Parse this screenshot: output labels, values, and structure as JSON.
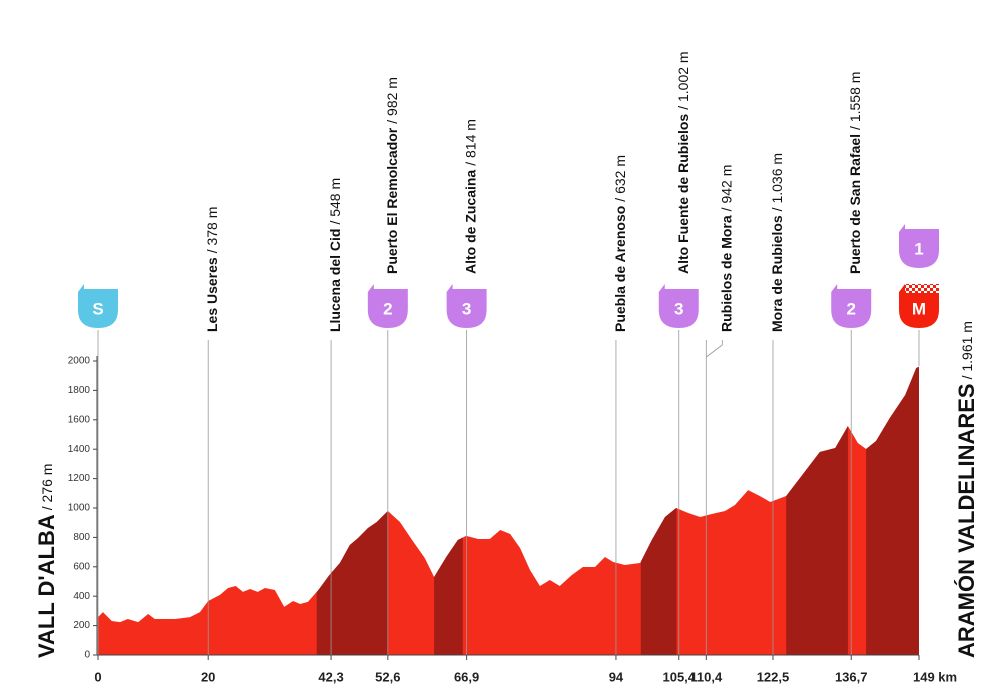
{
  "chart_data": {
    "type": "area",
    "x": [
      0,
      0.9,
      2.5,
      4,
      5.4,
      7.3,
      9.1,
      10.3,
      14,
      16.7,
      18.5,
      20,
      22.1,
      23.6,
      25,
      26.3,
      27.6,
      29,
      30.3,
      32.1,
      33.8,
      35.4,
      36.7,
      38.1,
      40,
      42,
      43.9,
      45.7,
      47.2,
      49,
      50.6,
      52.6,
      54.8,
      57,
      59.3,
      61,
      63.2,
      65.3,
      66.8,
      69,
      71.1,
      73,
      74.8,
      76.6,
      78.4,
      80.2,
      82,
      83.8,
      86,
      88,
      90.2,
      92,
      93.5,
      95.6,
      98.4,
      100.5,
      102.9,
      104.9,
      107.1,
      109.3,
      111.4,
      113.8,
      115.6,
      118,
      120.1,
      122,
      124.9,
      127.4,
      131,
      133.8,
      136.1,
      137.9,
      139.4,
      141.2,
      143.7,
      146.5,
      148.5,
      149
    ],
    "values": [
      258,
      292,
      231,
      224,
      245,
      224,
      279,
      245,
      245,
      258,
      292,
      367,
      408,
      456,
      469,
      429,
      449,
      429,
      456,
      442,
      327,
      367,
      347,
      361,
      442,
      544,
      626,
      748,
      796,
      864,
      905,
      980,
      905,
      782,
      660,
      531,
      667,
      782,
      810,
      789,
      789,
      850,
      823,
      728,
      578,
      469,
      510,
      469,
      544,
      599,
      599,
      667,
      633,
      612,
      626,
      782,
      939,
      1000,
      966,
      939,
      959,
      980,
      1020,
      1122,
      1082,
      1041,
      1082,
      1204,
      1381,
      1408,
      1558,
      1442,
      1401,
      1456,
      1612,
      1769,
      1952,
      1961
    ],
    "color": "#f42c1c",
    "climb_color": "#a11d15",
    "climbs": [
      [
        39.7,
        52.6
      ],
      [
        61,
        66.2
      ],
      [
        98.5,
        105
      ],
      [
        124.9,
        136.1
      ],
      [
        139.4,
        149
      ]
    ],
    "xlim": [
      0,
      149
    ],
    "ylim": [
      0,
      2000
    ],
    "yticks": [
      0,
      200,
      400,
      600,
      800,
      1000,
      1200,
      1400,
      1600,
      1800,
      2000
    ],
    "xticks": [
      0,
      20,
      {
        "value": 42.3,
        "label": "42,3"
      },
      {
        "value": 52.6,
        "label": "52,6"
      },
      {
        "value": 66.9,
        "label": "66,9"
      },
      94,
      {
        "value": 105.4,
        "label": "105,4"
      },
      {
        "value": 110.4,
        "label": "110,4"
      },
      {
        "value": 122.5,
        "label": "122,5"
      },
      {
        "value": 136.7,
        "label": "136,7"
      },
      {
        "value": 149,
        "label": "149 km"
      }
    ],
    "start": {
      "name": "VALL D'ALBA",
      "elevation": "/ 276 m"
    },
    "finish": {
      "name": "ARAMÓN VALDELINARES",
      "elevation": "/ 1.961 m"
    },
    "waypoints": [
      {
        "x": 20,
        "name": "Les Useres",
        "elevation": "/ 378 m"
      },
      {
        "x": 42.3,
        "name": "Llucena del Cid",
        "elevation": "/ 548 m"
      },
      {
        "x": 52.6,
        "name": "Puerto El Remolcador",
        "elevation": "/ 982 m",
        "badge": "2"
      },
      {
        "x": 66.9,
        "name": "Alto de Zucaina",
        "elevation": "/ 814 m",
        "badge": "3"
      },
      {
        "x": 94,
        "name": "Puebla de Arenoso",
        "elevation": "/ 632 m"
      },
      {
        "x": 105.4,
        "name": "Alto Fuente de Rubielos",
        "elevation": "/ 1.002 m",
        "badge": "3"
      },
      {
        "x": 110.4,
        "name": "Rubielos de Mora",
        "elevation": "/ 942 m"
      },
      {
        "x": 122.5,
        "name": "Mora de Rubielos",
        "elevation": "/ 1.036 m"
      },
      {
        "x": 136.7,
        "name": "Puerto de San Rafael",
        "elevation": "/ 1.558 m",
        "badge": "2"
      }
    ],
    "badge_color": "#c77de9",
    "start_badge": {
      "label": "S",
      "color": "#5bc6e6"
    },
    "finish_badge": {
      "label": "M",
      "color": "#f2200c",
      "checkered": true
    },
    "summit_badge": {
      "label": "1",
      "color": "#c77de9"
    }
  }
}
